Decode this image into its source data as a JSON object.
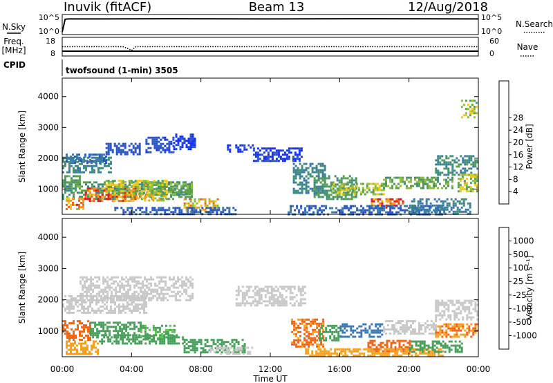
{
  "header": {
    "station": "Inuvik (fitACF)",
    "beam": "Beam 13",
    "date": "12/Aug/2018"
  },
  "chart_data": [
    {
      "type": "line",
      "panel": "sky-search",
      "left_label": "N.Sky",
      "right_label": "N.Search",
      "left_ticks": [
        "10^5",
        "10^0"
      ],
      "right_ticks": [
        "10^5",
        "10^0"
      ],
      "series": [
        {
          "name": "N.Sky",
          "style": "solid"
        },
        {
          "name": "N.Search",
          "style": "dotted"
        }
      ],
      "x": [
        "00:00",
        "00:10",
        "00:20",
        "02:00",
        "06:00",
        "12:00",
        "18:00",
        "23:59"
      ],
      "values": [
        0.1,
        0.78,
        0.8,
        0.8,
        0.81,
        0.8,
        0.81,
        0.8
      ]
    },
    {
      "type": "line",
      "panel": "freq-nave",
      "left_label_lines": [
        "Freq.",
        "[MHz]"
      ],
      "right_label": "Nave",
      "left_ticks": [
        "18",
        "8"
      ],
      "right_ticks": [
        "60",
        "0"
      ],
      "ylim_left": [
        8,
        18
      ],
      "ylim_right": [
        0,
        60
      ],
      "series": [
        {
          "name": "Freq.",
          "style": "solid",
          "x": [
            "00:00",
            "24:00"
          ],
          "values": [
            10.6,
            10.6
          ]
        },
        {
          "name": "Nave",
          "style": "dotted",
          "x": [
            "00:00",
            "03:30",
            "03:45",
            "04:00",
            "04:15",
            "24:00"
          ],
          "values": [
            30,
            30,
            25,
            18,
            30,
            30
          ]
        }
      ]
    },
    {
      "type": "text",
      "panel": "cpid",
      "label": "CPID",
      "value": "twofsound (1-min) 3505"
    },
    {
      "type": "heatmap",
      "panel": "power",
      "ylabel": "Slant Range [km]",
      "yticks": [
        1000,
        2000,
        3000,
        4000
      ],
      "ylim": [
        180,
        4600
      ],
      "colorbar": {
        "label": "Power [dB]",
        "ticks": [
          "4",
          "8",
          "12",
          "16",
          "20",
          "24",
          "28"
        ],
        "colors": [
          "#1430f0",
          "#2a55c8",
          "#3a7aa8",
          "#3f8f78",
          "#5aa050",
          "#8fbe3c",
          "#f2c81e",
          "#f59a1e",
          "#f0641a",
          "#e01e14"
        ]
      },
      "regions": [
        {
          "t0": 0.0,
          "t1": 2.8,
          "r0": 1550,
          "r1": 2050,
          "value": 10
        },
        {
          "t0": 0.2,
          "t1": 2.5,
          "r0": 1850,
          "r1": 2150,
          "value": 7
        },
        {
          "t0": 2.5,
          "t1": 4.5,
          "r0": 2150,
          "r1": 2500,
          "value": 5
        },
        {
          "t0": 4.8,
          "t1": 6.4,
          "r0": 2200,
          "r1": 2700,
          "value": 4
        },
        {
          "t0": 6.4,
          "t1": 7.6,
          "r0": 2300,
          "r1": 2800,
          "value": 3
        },
        {
          "t0": 0.0,
          "t1": 7.5,
          "r0": 700,
          "r1": 1250,
          "value": 12
        },
        {
          "t0": 1.3,
          "t1": 4.2,
          "r0": 620,
          "r1": 1050,
          "value": 27
        },
        {
          "t0": 4.0,
          "t1": 6.0,
          "r0": 650,
          "r1": 1000,
          "value": 20
        },
        {
          "t0": 5.5,
          "t1": 7.5,
          "r0": 800,
          "r1": 1200,
          "value": 15
        },
        {
          "t0": 0.2,
          "t1": 1.3,
          "r0": 380,
          "r1": 720,
          "value": 24
        },
        {
          "t0": 2.5,
          "t1": 6.0,
          "r0": 850,
          "r1": 1300,
          "value": 18
        },
        {
          "t0": 0.0,
          "t1": 1.0,
          "r0": 1100,
          "r1": 1450,
          "value": 14
        },
        {
          "t0": 7.0,
          "t1": 9.0,
          "r0": 250,
          "r1": 700,
          "value": 22
        },
        {
          "t0": 3.0,
          "t1": 10.0,
          "r0": 200,
          "r1": 420,
          "value": 6
        },
        {
          "t0": 11.0,
          "t1": 13.8,
          "r0": 1900,
          "r1": 2350,
          "value": 3
        },
        {
          "t0": 9.5,
          "t1": 11.0,
          "r0": 2200,
          "r1": 2450,
          "value": 3
        },
        {
          "t0": 13.3,
          "t1": 15.2,
          "r0": 900,
          "r1": 1850,
          "value": 10
        },
        {
          "t0": 14.5,
          "t1": 17.0,
          "r0": 700,
          "r1": 1450,
          "value": 13
        },
        {
          "t0": 15.5,
          "t1": 18.5,
          "r0": 800,
          "r1": 1200,
          "value": 17
        },
        {
          "t0": 17.8,
          "t1": 19.6,
          "r0": 420,
          "r1": 700,
          "value": 28
        },
        {
          "t0": 18.5,
          "t1": 22.5,
          "r0": 1000,
          "r1": 1400,
          "value": 15
        },
        {
          "t0": 21.5,
          "t1": 23.9,
          "r0": 1450,
          "r1": 2100,
          "value": 11
        },
        {
          "t0": 22.8,
          "t1": 23.9,
          "r0": 900,
          "r1": 1500,
          "value": 18
        },
        {
          "t0": 13.0,
          "t1": 22.0,
          "r0": 200,
          "r1": 480,
          "value": 6
        },
        {
          "t0": 20.0,
          "t1": 23.5,
          "r0": 220,
          "r1": 700,
          "value": 9
        },
        {
          "t0": 23.0,
          "t1": 23.9,
          "r0": 3300,
          "r1": 3900,
          "value": 18
        }
      ]
    },
    {
      "type": "heatmap",
      "panel": "velocity",
      "ylabel": "Slant Range [km]",
      "yticks": [
        1000,
        2000,
        3000,
        4000
      ],
      "ylim": [
        180,
        4600
      ],
      "xlabel": "Time UT",
      "xticks": [
        "00:00",
        "04:00",
        "08:00",
        "12:00",
        "16:00",
        "20:00",
        "00:00"
      ],
      "colorbar": {
        "label": "Velocity [m s⁻¹]",
        "ticks": [
          "1000",
          "500",
          "100",
          "25",
          "-25",
          "-100",
          "-500",
          "-1000"
        ],
        "colors": [
          "#1e46c8",
          "#3a78b4",
          "#46a05a",
          "#5ac84a",
          "#c8c8c8",
          "#f0d23c",
          "#f5a01e",
          "#f06414",
          "#e01e14"
        ]
      },
      "regions": [
        {
          "t0": 0.0,
          "t1": 4.8,
          "r0": 1600,
          "r1": 2150,
          "value": 0
        },
        {
          "t0": 1.0,
          "t1": 7.5,
          "r0": 2000,
          "r1": 2750,
          "value": 0
        },
        {
          "t0": 0.0,
          "t1": 1.6,
          "r0": 700,
          "r1": 1350,
          "value": -400
        },
        {
          "t0": 1.6,
          "t1": 4.5,
          "r0": 800,
          "r1": 1300,
          "value": 150
        },
        {
          "t0": 4.5,
          "t1": 6.5,
          "r0": 750,
          "r1": 1200,
          "value": 60
        },
        {
          "t0": 0.2,
          "t1": 2.0,
          "r0": 300,
          "r1": 700,
          "value": -150
        },
        {
          "t0": 2.0,
          "t1": 7.0,
          "r0": 600,
          "r1": 900,
          "value": 100
        },
        {
          "t0": 7.0,
          "t1": 10.5,
          "r0": 300,
          "r1": 750,
          "value": 80
        },
        {
          "t0": 8.5,
          "t1": 11.0,
          "r0": 250,
          "r1": 500,
          "value": 0
        },
        {
          "t0": 10.0,
          "t1": 14.0,
          "r0": 1800,
          "r1": 2450,
          "value": 0
        },
        {
          "t0": 13.2,
          "t1": 15.0,
          "r0": 500,
          "r1": 1400,
          "value": -350
        },
        {
          "t0": 14.8,
          "t1": 16.0,
          "r0": 700,
          "r1": 1200,
          "value": 120
        },
        {
          "t0": 16.0,
          "t1": 18.5,
          "r0": 800,
          "r1": 1250,
          "value": 600
        },
        {
          "t0": 17.6,
          "t1": 20.0,
          "r0": 330,
          "r1": 720,
          "value": -400
        },
        {
          "t0": 18.5,
          "t1": 21.5,
          "r0": 900,
          "r1": 1350,
          "value": 0
        },
        {
          "t0": 21.5,
          "t1": 23.9,
          "r0": 850,
          "r1": 1250,
          "value": -300
        },
        {
          "t0": 21.5,
          "t1": 23.9,
          "r0": 1400,
          "r1": 2000,
          "value": 0
        },
        {
          "t0": 14.0,
          "t1": 22.0,
          "r0": 220,
          "r1": 450,
          "value": -80
        },
        {
          "t0": 20.0,
          "t1": 23.0,
          "r0": 350,
          "r1": 700,
          "value": 150
        }
      ]
    }
  ]
}
